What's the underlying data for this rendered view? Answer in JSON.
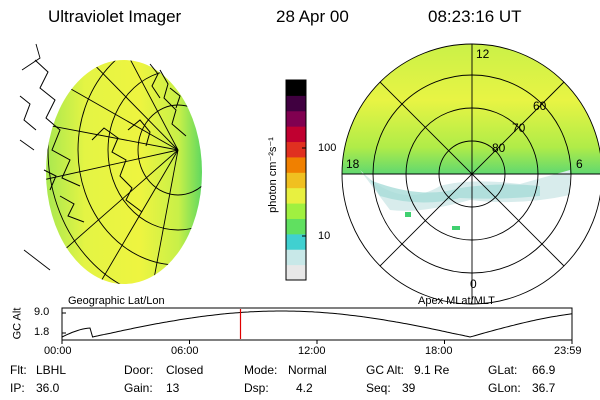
{
  "header": {
    "title": "Ultraviolet Imager",
    "date": "28 Apr 00",
    "time": "08:23:16 UT"
  },
  "colorbar": {
    "unit_label": "photon cm⁻²s⁻¹",
    "ticks": [
      "100",
      "10"
    ],
    "colors": [
      "#e8e8e8",
      "#c8e8e8",
      "#40d0d0",
      "#60e060",
      "#a0f040",
      "#e8f040",
      "#f0c020",
      "#f08000",
      "#e03020",
      "#c00030",
      "#800050",
      "#400040",
      "#000000"
    ]
  },
  "polar_plot": {
    "mlt_labels": [
      "12",
      "18",
      "6",
      "0"
    ],
    "mlat_labels": [
      "60",
      "70",
      "80"
    ],
    "caption": "Apex MLat/MLT"
  },
  "globe": {
    "caption": "Geographic Lat/Lon"
  },
  "altitude_plot": {
    "ylabel": "GC Alt",
    "y_ticks": [
      "9.0",
      "1.8"
    ],
    "x_ticks": [
      "00:00",
      "06:00",
      "12:00",
      "18:00",
      "23:59"
    ],
    "current_time_fraction": 0.35,
    "marker_color": "#e00000"
  },
  "info": {
    "row1": [
      {
        "label": "Flt:",
        "value": "LBHL"
      },
      {
        "label": "Door:",
        "value": "Closed"
      },
      {
        "label": "Mode:",
        "value": "Normal"
      },
      {
        "label": "GC Alt:",
        "value": "9.1 Re"
      },
      {
        "label": "GLat:",
        "value": "66.9"
      }
    ],
    "row2": [
      {
        "label": "IP:",
        "value": "36.0"
      },
      {
        "label": "Gain:",
        "value": "13"
      },
      {
        "label": "Dsp:",
        "value": "4.2"
      },
      {
        "label": "Seq:",
        "value": "39"
      },
      {
        "label": "GLon:",
        "value": "36.7"
      }
    ]
  }
}
